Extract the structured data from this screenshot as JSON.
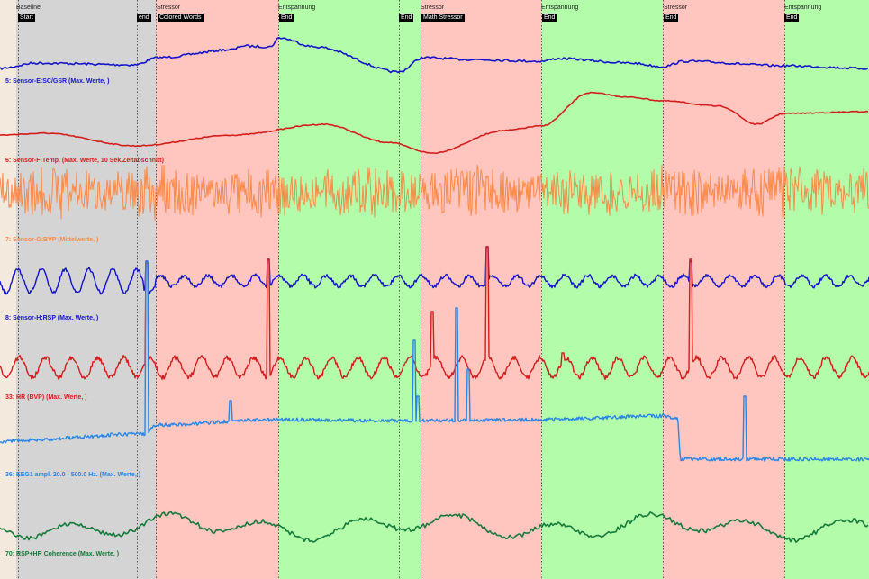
{
  "phases": [
    {
      "title": "Baseline",
      "start": "Start",
      "end": "end",
      "color": "#d4d4d4"
    },
    {
      "title": "Stressor",
      "start": "Colored Words",
      "end": "",
      "color": "#ffc6c0"
    },
    {
      "title": "Entspannung",
      "start": "End",
      "end": "End",
      "color": "#b2fcaa"
    },
    {
      "title": "Stressor",
      "start": "Math Stressor",
      "end": "",
      "color": "#ffc6c0"
    },
    {
      "title": "Entspannung",
      "start": "End",
      "end": "",
      "color": "#b2fcaa"
    },
    {
      "title": "Stressor",
      "start": "End",
      "end": "",
      "color": "#ffc6c0"
    },
    {
      "title": "Entspannung",
      "start": "End",
      "end": "",
      "color": "#b2fcaa"
    }
  ],
  "channels": [
    {
      "label": "5: Sensor-E:SC/GSR (Max. Werte, )",
      "color": "#1515c8"
    },
    {
      "label": "6: Sensor-F:Temp. (Max. Werte, 10 Sek.Zeitabschnitt)",
      "color": "#d41e1e"
    },
    {
      "label": "7: Sensor-G:BVP (Mittelwerte, )",
      "color": "#fb8a48"
    },
    {
      "label": "8: Sensor-H:RSP (Max. Werte, )",
      "color": "#1414c8"
    },
    {
      "label": "33: HR (BVP) (Max. Werte, )",
      "color": "#d41e1e"
    },
    {
      "label": "36: EEG1 ampl.        20.0 - 500.0 Hz. (Max. Werte, )",
      "color": "#2886e6"
    },
    {
      "label": "70: RSP+HR Coherence (Max. Werte, )",
      "color": "#157a3a"
    }
  ]
}
